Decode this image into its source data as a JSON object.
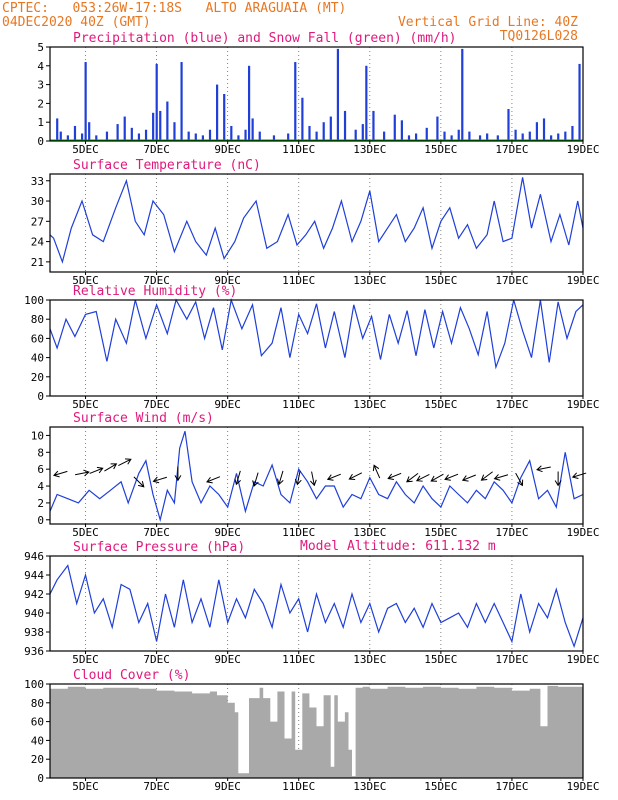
{
  "header": {
    "line1_left": "CPTEC:   053:26W-17:18S   ALTO ARAGUAIA (MT)",
    "line2_left": "04DEC2020 40Z (GMT)",
    "line2_right": "Vertical Grid Line: 40Z",
    "line3_right": "TQ0126L028"
  },
  "colors": {
    "header": "#e87722",
    "panel_title": "#e0197d",
    "line": "#1f3fd8",
    "precip": "#1f3fd8",
    "snow": "#00a000",
    "cloud": "#a9a9a9"
  },
  "x_axis": {
    "start": "04DEC2020",
    "end": "19DEC2020",
    "tick_labels": [
      "5DEC",
      "7DEC",
      "9DEC",
      "11DEC",
      "13DEC",
      "15DEC",
      "17DEC",
      "19DEC"
    ],
    "tick_days": [
      5,
      7,
      9,
      11,
      13,
      15,
      17,
      19
    ],
    "range_days": [
      4.0,
      19.0
    ]
  },
  "chart_data": [
    {
      "type": "bar",
      "title": "Precipitation (blue) and Snow Fall (green) (mm/h)",
      "ylim": [
        0,
        5
      ],
      "yticks": [
        0,
        1,
        2,
        3,
        4,
        5
      ],
      "series": [
        {
          "name": "Precipitation",
          "color": "#1f3fd8",
          "x": [
            4.2,
            4.3,
            4.5,
            4.7,
            4.9,
            5.0,
            5.1,
            5.3,
            5.6,
            5.9,
            6.1,
            6.3,
            6.5,
            6.7,
            6.9,
            7.0,
            7.1,
            7.3,
            7.5,
            7.7,
            7.9,
            8.1,
            8.3,
            8.5,
            8.7,
            8.9,
            9.1,
            9.3,
            9.5,
            9.6,
            9.7,
            9.9,
            10.3,
            10.7,
            10.9,
            11.1,
            11.3,
            11.5,
            11.7,
            11.9,
            12.1,
            12.3,
            12.6,
            12.8,
            12.9,
            13.1,
            13.4,
            13.7,
            13.9,
            14.1,
            14.3,
            14.6,
            14.9,
            15.1,
            15.3,
            15.5,
            15.6,
            15.8,
            16.1,
            16.3,
            16.6,
            16.9,
            17.1,
            17.3,
            17.5,
            17.7,
            17.9,
            18.1,
            18.3,
            18.5,
            18.7,
            18.9
          ],
          "values": [
            1.2,
            0.5,
            0.3,
            0.8,
            0.4,
            4.2,
            1.0,
            0.3,
            0.5,
            0.9,
            1.3,
            0.7,
            0.4,
            0.6,
            1.5,
            4.1,
            1.6,
            2.1,
            1.0,
            4.2,
            0.5,
            0.4,
            0.3,
            0.6,
            3.0,
            2.5,
            0.8,
            0.3,
            0.6,
            4.0,
            1.2,
            0.5,
            0.3,
            0.4,
            4.2,
            2.3,
            0.8,
            0.5,
            1.0,
            1.3,
            4.9,
            1.6,
            0.6,
            0.9,
            4.0,
            1.6,
            0.5,
            1.4,
            1.1,
            0.3,
            0.4,
            0.7,
            1.3,
            0.5,
            0.3,
            0.6,
            4.9,
            0.5,
            0.3,
            0.4,
            0.3,
            1.7,
            0.6,
            0.4,
            0.5,
            1.0,
            1.2,
            0.3,
            0.4,
            0.5,
            0.8,
            4.1
          ]
        },
        {
          "name": "Snow Fall",
          "color": "#00a000",
          "x": [
            4.0,
            19.0
          ],
          "values": [
            0,
            0
          ]
        }
      ]
    },
    {
      "type": "line",
      "title": "Surface Temperature (nC)",
      "ylim": [
        19.5,
        34
      ],
      "yticks": [
        21,
        24,
        27,
        30,
        33
      ],
      "series": [
        {
          "name": "Surface Temperature",
          "x": [
            4.0,
            4.1,
            4.35,
            4.6,
            4.9,
            5.2,
            5.5,
            5.85,
            6.15,
            6.4,
            6.65,
            6.9,
            7.2,
            7.5,
            7.85,
            8.1,
            8.4,
            8.65,
            8.9,
            9.2,
            9.45,
            9.8,
            10.1,
            10.4,
            10.7,
            10.95,
            11.2,
            11.45,
            11.7,
            11.95,
            12.2,
            12.5,
            12.75,
            13.0,
            13.25,
            13.5,
            13.75,
            14.0,
            14.25,
            14.5,
            14.75,
            15.0,
            15.25,
            15.5,
            15.75,
            16.0,
            16.3,
            16.5,
            16.75,
            17.0,
            17.3,
            17.55,
            17.8,
            18.1,
            18.35,
            18.6,
            18.85,
            19.0
          ],
          "values": [
            25,
            24.5,
            21,
            26,
            30,
            25,
            24,
            29,
            33,
            27,
            25,
            30,
            28,
            22.5,
            27,
            24,
            22,
            26,
            21.5,
            24,
            27.5,
            30,
            23,
            24,
            28,
            23.5,
            25,
            27,
            23,
            26,
            30,
            24,
            27,
            31.5,
            24,
            26,
            28,
            24,
            26,
            29,
            23,
            27,
            29,
            24.5,
            26.5,
            23,
            25,
            30,
            24,
            24.5,
            33.5,
            26,
            31,
            24,
            28,
            23.5,
            30,
            26
          ]
        }
      ]
    },
    {
      "type": "line",
      "title": "Relative Humidity (%)",
      "ylim": [
        0,
        100
      ],
      "yticks": [
        0,
        20,
        40,
        60,
        80,
        100
      ],
      "series": [
        {
          "name": "Relative Humidity",
          "x": [
            4.0,
            4.2,
            4.45,
            4.7,
            5.0,
            5.3,
            5.6,
            5.85,
            6.15,
            6.4,
            6.7,
            7.0,
            7.3,
            7.55,
            7.85,
            8.1,
            8.35,
            8.6,
            8.85,
            9.1,
            9.4,
            9.7,
            9.95,
            10.25,
            10.5,
            10.75,
            11.0,
            11.25,
            11.5,
            11.75,
            12.0,
            12.3,
            12.55,
            12.8,
            13.05,
            13.3,
            13.55,
            13.8,
            14.05,
            14.3,
            14.55,
            14.8,
            15.05,
            15.3,
            15.55,
            15.8,
            16.05,
            16.3,
            16.55,
            16.8,
            17.05,
            17.3,
            17.55,
            17.8,
            18.05,
            18.3,
            18.55,
            18.8,
            19.0
          ],
          "values": [
            70,
            50,
            80,
            62,
            85,
            88,
            36,
            80,
            55,
            100,
            60,
            95,
            65,
            100,
            80,
            98,
            60,
            92,
            48,
            100,
            70,
            95,
            42,
            55,
            92,
            40,
            85,
            65,
            96,
            50,
            88,
            40,
            95,
            60,
            83,
            38,
            85,
            55,
            89,
            42,
            90,
            50,
            88,
            55,
            92,
            70,
            43,
            88,
            30,
            55,
            100,
            68,
            40,
            100,
            35,
            98,
            60,
            88,
            95
          ]
        }
      ]
    },
    {
      "type": "line",
      "title": "Surface Wind (m/s)",
      "ylim": [
        -0.5,
        11
      ],
      "yticks": [
        0,
        2,
        4,
        6,
        8,
        10
      ],
      "series": [
        {
          "name": "Surface Wind",
          "x": [
            4.0,
            4.2,
            4.5,
            4.8,
            5.1,
            5.4,
            5.7,
            6.0,
            6.2,
            6.5,
            6.7,
            6.9,
            7.1,
            7.3,
            7.5,
            7.65,
            7.8,
            8.0,
            8.25,
            8.5,
            8.75,
            9.0,
            9.25,
            9.5,
            9.75,
            10.0,
            10.25,
            10.5,
            10.75,
            11.0,
            11.25,
            11.5,
            11.75,
            12.0,
            12.25,
            12.5,
            12.75,
            13.0,
            13.25,
            13.5,
            13.75,
            14.0,
            14.25,
            14.5,
            14.75,
            15.0,
            15.25,
            15.5,
            15.75,
            16.0,
            16.25,
            16.5,
            16.75,
            17.0,
            17.25,
            17.5,
            17.75,
            18.0,
            18.25,
            18.5,
            18.75,
            19.0
          ],
          "values": [
            1.0,
            3.0,
            2.5,
            2.0,
            3.5,
            2.5,
            3.5,
            4.5,
            2.0,
            5.5,
            7.0,
            3.0,
            0.0,
            3.5,
            2.0,
            8.5,
            10.5,
            4.5,
            2.0,
            4.0,
            3.0,
            1.5,
            5.5,
            1.0,
            4.5,
            4.0,
            6.5,
            3.0,
            2.0,
            6.0,
            4.5,
            2.5,
            4.0,
            4.0,
            1.5,
            3.0,
            2.5,
            5.0,
            3.0,
            2.5,
            4.5,
            3.0,
            2.0,
            4.0,
            2.5,
            1.5,
            4.0,
            3.0,
            2.0,
            3.5,
            2.5,
            4.5,
            3.5,
            2.0,
            5.0,
            7.0,
            2.5,
            3.5,
            1.5,
            8.0,
            2.5,
            3.0
          ]
        }
      ]
    },
    {
      "type": "line",
      "title": "Surface Pressure (hPa)",
      "annotation": "Model Altitude: 611.132 m",
      "ylim": [
        936,
        946
      ],
      "yticks": [
        936,
        938,
        940,
        942,
        944,
        946
      ],
      "series": [
        {
          "name": "Surface Pressure",
          "x": [
            4.0,
            4.2,
            4.5,
            4.75,
            5.0,
            5.25,
            5.5,
            5.75,
            6.0,
            6.25,
            6.5,
            6.75,
            7.0,
            7.25,
            7.5,
            7.75,
            8.0,
            8.25,
            8.5,
            8.75,
            9.0,
            9.25,
            9.5,
            9.75,
            10.0,
            10.25,
            10.5,
            10.75,
            11.0,
            11.25,
            11.5,
            11.75,
            12.0,
            12.25,
            12.5,
            12.75,
            13.0,
            13.25,
            13.5,
            13.75,
            14.0,
            14.25,
            14.5,
            14.75,
            15.0,
            15.25,
            15.5,
            15.75,
            16.0,
            16.25,
            16.5,
            16.75,
            17.0,
            17.25,
            17.5,
            17.75,
            18.0,
            18.25,
            18.5,
            18.75,
            19.0
          ],
          "values": [
            942,
            943.5,
            945,
            941,
            944,
            940,
            941.5,
            938.5,
            943,
            942.5,
            939,
            941,
            937,
            942,
            938.5,
            943.5,
            939,
            941.5,
            938.5,
            943.5,
            939,
            941.5,
            939.5,
            942.5,
            941,
            938.5,
            943,
            940,
            941.5,
            938,
            942,
            939,
            941,
            938.5,
            942,
            939,
            941,
            938,
            940.5,
            941,
            939,
            940.5,
            938.5,
            941,
            939,
            939.5,
            940,
            938.5,
            941,
            939,
            941,
            939,
            937,
            942,
            938,
            941,
            939.5,
            942.5,
            939,
            936.5,
            939.5
          ]
        }
      ]
    },
    {
      "type": "area",
      "title": "Cloud Cover (%)",
      "ylim": [
        0,
        100
      ],
      "yticks": [
        0,
        20,
        40,
        60,
        80,
        100
      ],
      "series": [
        {
          "name": "Cloud Cover",
          "x": [
            4.0,
            4.5,
            5.0,
            5.5,
            6.0,
            6.5,
            7.0,
            7.5,
            8.0,
            8.5,
            8.7,
            9.0,
            9.2,
            9.3,
            9.6,
            9.9,
            10.0,
            10.2,
            10.4,
            10.6,
            10.8,
            10.9,
            11.1,
            11.3,
            11.5,
            11.7,
            11.9,
            12.0,
            12.1,
            12.3,
            12.4,
            12.5,
            12.6,
            12.8,
            13.0,
            13.5,
            14.0,
            14.5,
            15.0,
            15.5,
            16.0,
            16.5,
            17.0,
            17.5,
            17.8,
            18.0,
            18.3,
            18.6,
            19.0
          ],
          "values": [
            95,
            97,
            95,
            96,
            96,
            95,
            93,
            92,
            90,
            92,
            88,
            80,
            70,
            5,
            85,
            96,
            85,
            60,
            92,
            42,
            92,
            30,
            90,
            75,
            55,
            88,
            12,
            88,
            60,
            70,
            30,
            2,
            96,
            97,
            95,
            97,
            96,
            97,
            96,
            95,
            97,
            96,
            93,
            95,
            55,
            98,
            97,
            97,
            97
          ]
        }
      ]
    }
  ]
}
